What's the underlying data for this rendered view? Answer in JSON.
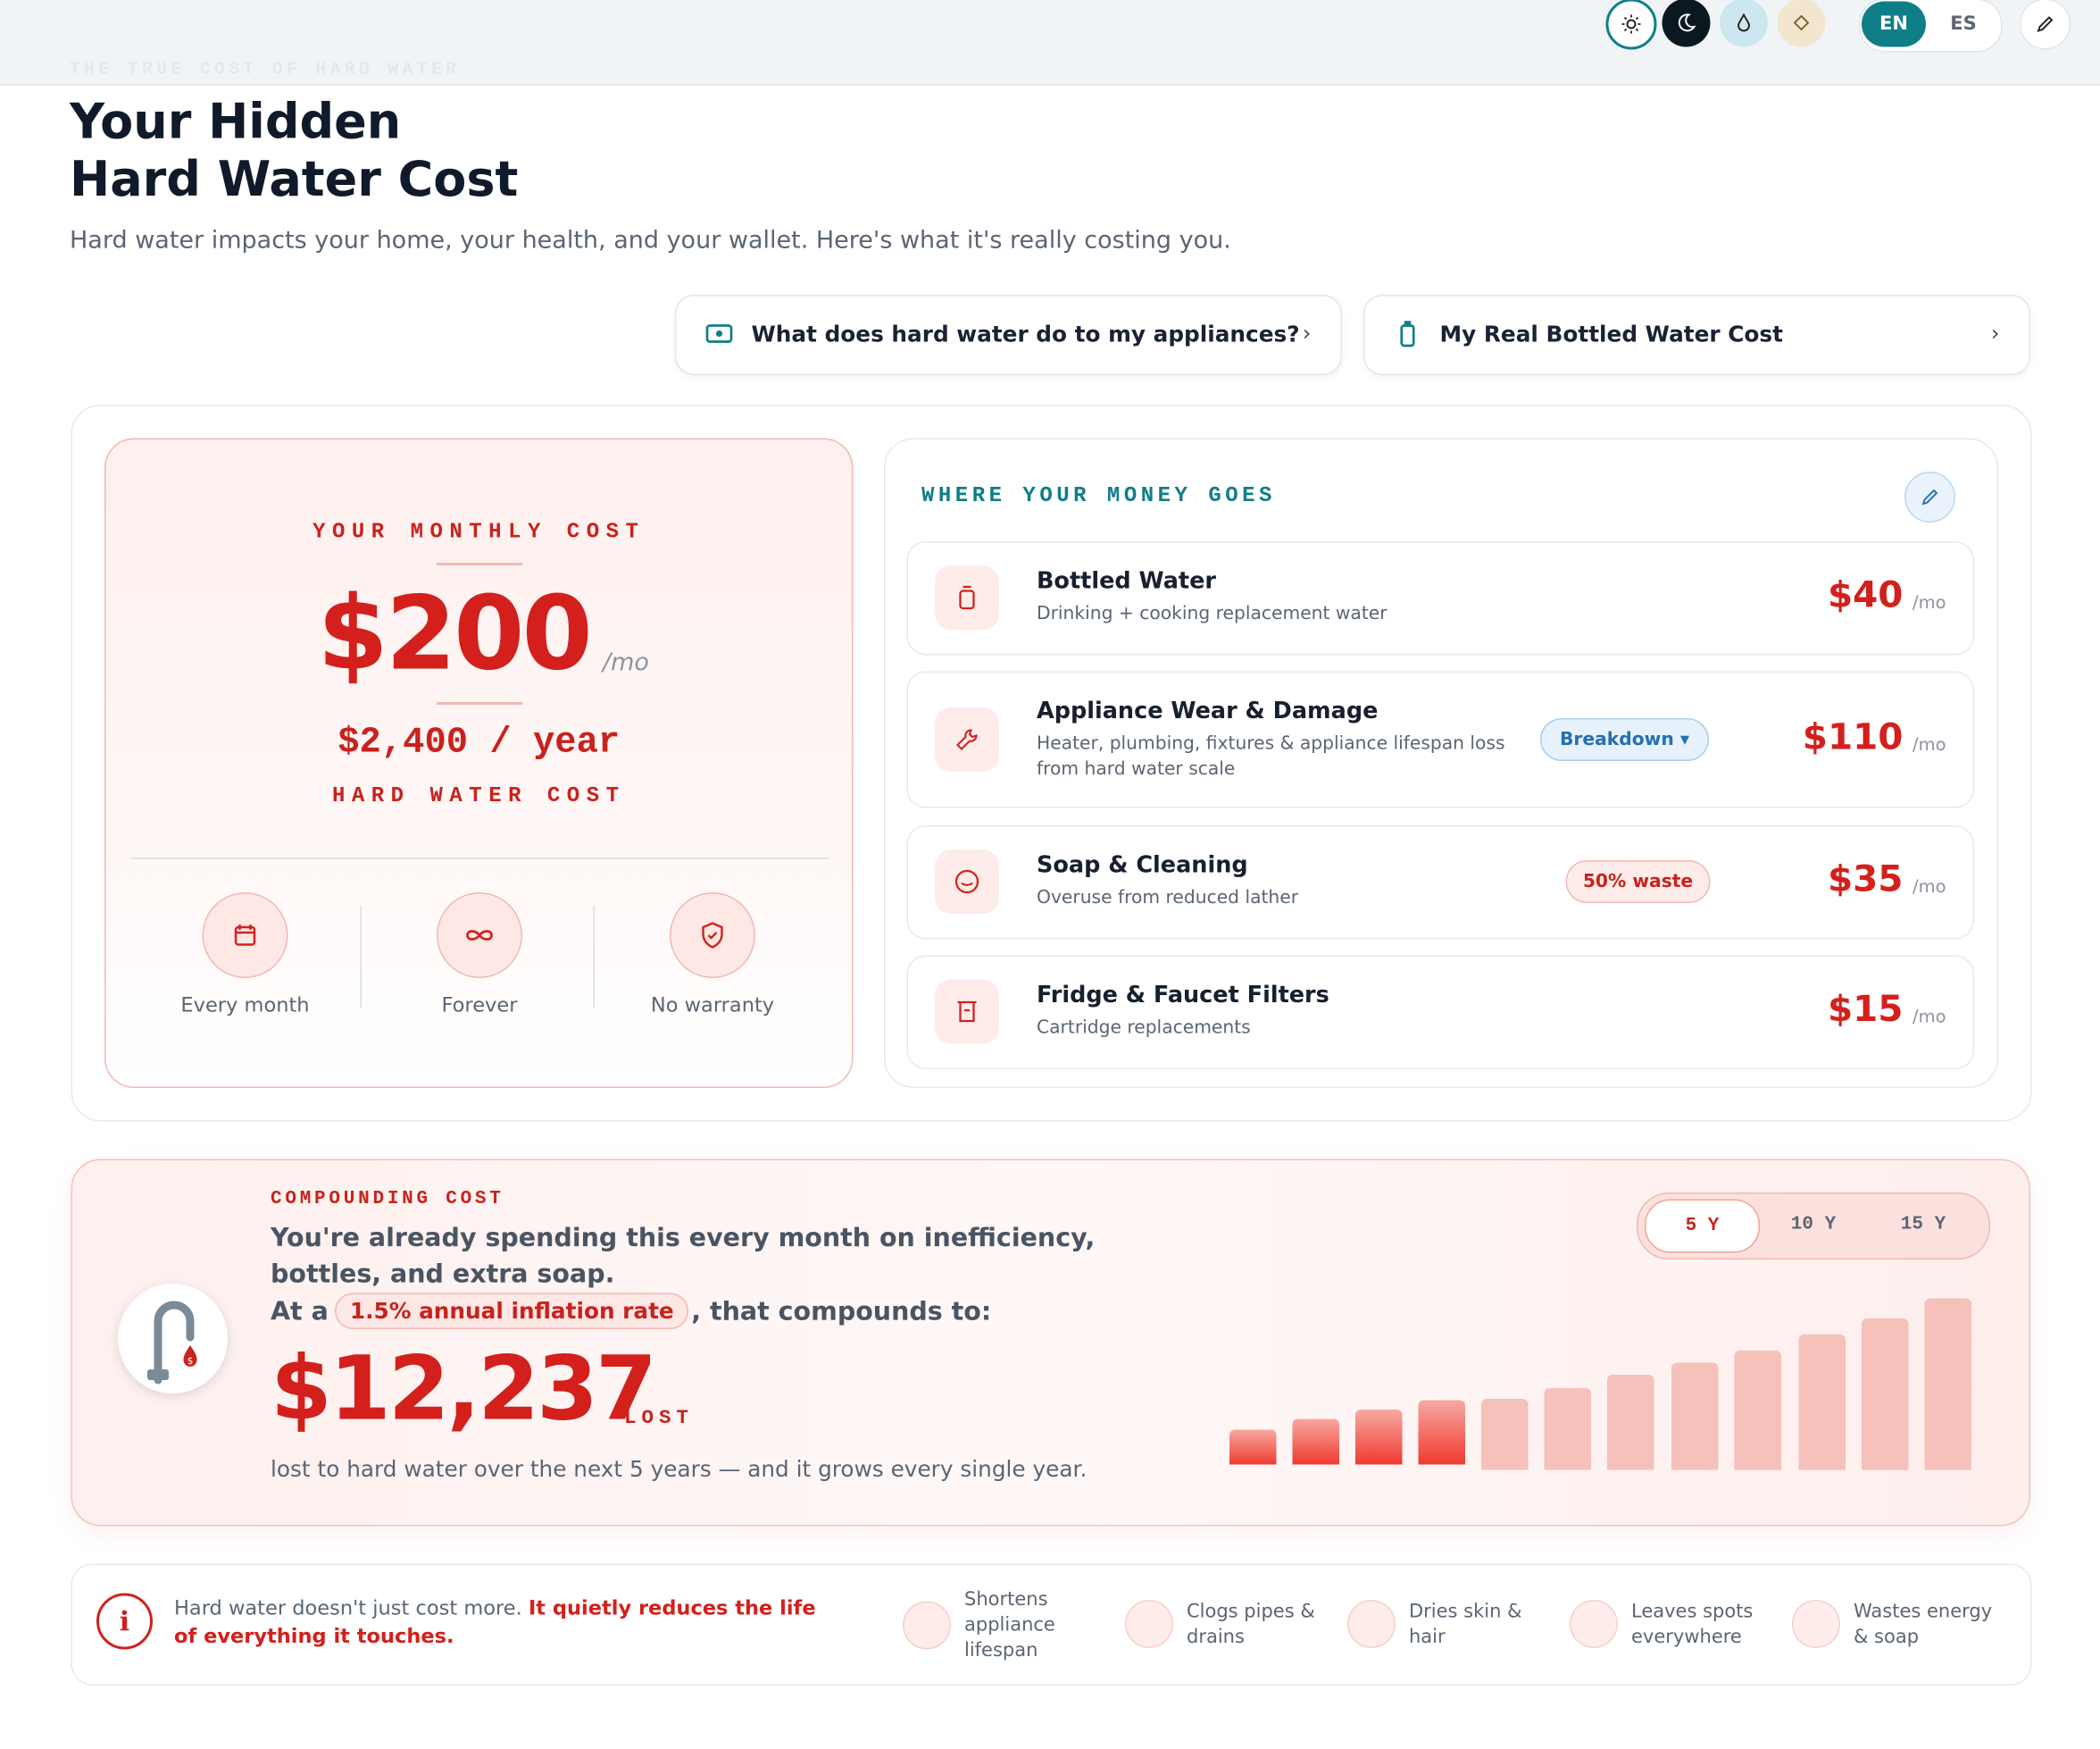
{
  "header": {
    "eyebrow": "THE TRUE COST OF HARD WATER",
    "title_line1": "Your Hidden",
    "title_line2": "Hard Water Cost",
    "subtitle": "Hard water impacts your home, your health, and your wallet. Here's what it's really costing you."
  },
  "toolbar": {
    "languages": [
      "EN",
      "ES"
    ]
  },
  "links": [
    "What does hard water do to my appliances?",
    "My Real Bottled Water Cost"
  ],
  "monthly": {
    "label": "YOUR MONTHLY COST",
    "amount": "$200",
    "unit": "/mo",
    "yearly": "$2,400 / year",
    "caption": "HARD WATER COST",
    "traits": [
      "Every month",
      "Forever",
      "No warranty"
    ]
  },
  "breakdown": {
    "title": "WHERE YOUR MONEY GOES",
    "items": [
      {
        "name": "Bottled Water",
        "desc": "Drinking + cooking replacement water",
        "amount": "$40",
        "unit": "/mo"
      },
      {
        "name": "Appliance Wear & Damage",
        "desc": "Heater, plumbing, fixtures & appliance lifespan loss from hard water scale",
        "badge": "Breakdown",
        "amount": "$110",
        "unit": "/mo"
      },
      {
        "name": "Soap & Cleaning",
        "desc": "Overuse from reduced lather",
        "badge": "50% waste",
        "amount": "$35",
        "unit": "/mo"
      },
      {
        "name": "Fridge & Faucet Filters",
        "desc": "Cartridge replacements",
        "amount": "$15",
        "unit": "/mo"
      }
    ]
  },
  "compounding": {
    "label": "COMPOUNDING COST",
    "text": "You're already spending this every month on inefficiency, bottles, and extra soap.",
    "inflation_prefix": "At a",
    "inflation_rate": "1.5% annual inflation rate",
    "inflation_suffix": ", that compounds to:",
    "amount": "$12,237",
    "amount_suffix": "LOST",
    "note": "lost to hard water over the next 5 years — and it grows every single year.",
    "periods": [
      "5 Y",
      "10 Y",
      "15 Y"
    ]
  },
  "footer": {
    "note_plain": "Hard water doesn't just cost more.",
    "note_emphasis": "It quietly reduces the life of everything it touches.",
    "effects": [
      "Shortens appliance lifespan",
      "Clogs pipes & drains",
      "Dries skin & hair",
      "Leaves spots everywhere",
      "Wastes energy & soap"
    ]
  }
}
